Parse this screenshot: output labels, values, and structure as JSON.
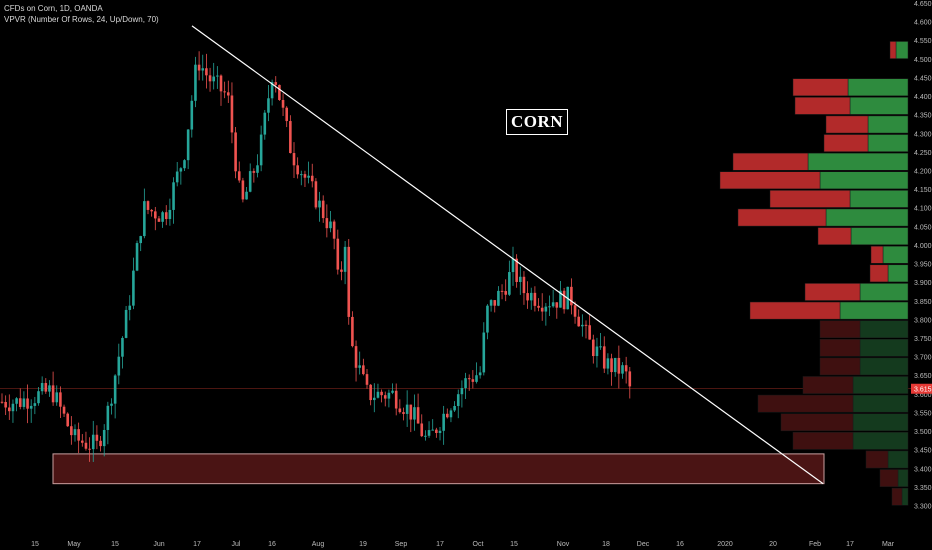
{
  "header": {
    "symbol_line": "CFDs on Corn, 1D, OANDA",
    "indicator_line": "VPVR (Number Of Rows, 24, Up/Down, 70)"
  },
  "annotation": {
    "label": "CORN"
  },
  "colors": {
    "up": "#26a69a",
    "down": "#ef5350",
    "vp_up": "#2e8b3e",
    "vp_down": "#b22a2a",
    "zone_fill": "#4a1414",
    "trendline": "#ffffff",
    "price_tag": "#e53935"
  },
  "chart_data": {
    "type": "candlestick",
    "y_axis": {
      "min": 3.3,
      "max": 4.65,
      "step": 0.05,
      "labels": [
        "4.650",
        "4.600",
        "4.550",
        "4.500",
        "4.450",
        "4.400",
        "4.350",
        "4.300",
        "4.250",
        "4.200",
        "4.150",
        "4.100",
        "4.050",
        "4.000",
        "3.950",
        "3.900",
        "3.850",
        "3.800",
        "3.750",
        "3.700",
        "3.650",
        "3.600",
        "3.550",
        "3.500",
        "3.450",
        "3.400",
        "3.350",
        "3.300"
      ]
    },
    "x_axis": {
      "labels": [
        "15",
        "May",
        "15",
        "Jun",
        "17",
        "Jul",
        "16",
        "Aug",
        "19",
        "Sep",
        "17",
        "Oct",
        "15",
        "Nov",
        "18",
        "Dec",
        "16",
        "2020",
        "20",
        "Feb",
        "17",
        "Mar"
      ]
    },
    "last_price": "3.615",
    "price_ohlc_anchors": [
      {
        "date": "Apr 08",
        "close": 3.58
      },
      {
        "date": "Apr 22",
        "close": 3.61
      },
      {
        "date": "May 01",
        "close": 3.48
      },
      {
        "date": "May 10",
        "close": 3.46
      },
      {
        "date": "May 14",
        "close": 3.55
      },
      {
        "date": "May 22",
        "close": 3.83
      },
      {
        "date": "May 28",
        "close": 4.1
      },
      {
        "date": "Jun 05",
        "close": 4.08
      },
      {
        "date": "Jun 12",
        "close": 4.24
      },
      {
        "date": "Jun 17",
        "close": 4.5
      },
      {
        "date": "Jun 21",
        "close": 4.45
      },
      {
        "date": "Jun 28",
        "close": 4.4
      },
      {
        "date": "Jul 03",
        "close": 4.1
      },
      {
        "date": "Jul 10",
        "close": 4.25
      },
      {
        "date": "Jul 15",
        "close": 4.48
      },
      {
        "date": "Jul 22",
        "close": 4.25
      },
      {
        "date": "Jul 31",
        "close": 4.13
      },
      {
        "date": "Aug 07",
        "close": 4.03
      },
      {
        "date": "Aug 09",
        "close": 3.88
      },
      {
        "date": "Aug 12",
        "close": 4.05
      },
      {
        "date": "Aug 13",
        "close": 3.75
      },
      {
        "date": "Aug 20",
        "close": 3.6
      },
      {
        "date": "Aug 30",
        "close": 3.6
      },
      {
        "date": "Sep 06",
        "close": 3.55
      },
      {
        "date": "Sep 12",
        "close": 3.47
      },
      {
        "date": "Sep 20",
        "close": 3.57
      },
      {
        "date": "Sep 27",
        "close": 3.64
      },
      {
        "date": "Oct 02",
        "close": 3.66
      },
      {
        "date": "Oct 04",
        "close": 3.82
      },
      {
        "date": "Oct 10",
        "close": 3.88
      },
      {
        "date": "Oct 14",
        "close": 3.94
      },
      {
        "date": "Oct 17",
        "close": 3.88
      },
      {
        "date": "Oct 25",
        "close": 3.85
      },
      {
        "date": "Nov 04",
        "close": 3.86
      },
      {
        "date": "Nov 11",
        "close": 3.74
      },
      {
        "date": "Nov 18",
        "close": 3.68
      },
      {
        "date": "Nov 25",
        "close": 3.66
      },
      {
        "date": "Nov 27",
        "close": 3.615
      }
    ],
    "trendline": {
      "from": {
        "date": "Jun 15",
        "price": 4.59
      },
      "to": {
        "date": "Feb 05",
        "price": 3.36
      }
    },
    "support_zone": {
      "y_low": 3.36,
      "y_high": 3.44,
      "from": "Apr 15",
      "to": "Feb 05"
    },
    "resistance_line": {
      "price": 3.615
    },
    "volume_profile": [
      {
        "price": 4.525,
        "up": 12,
        "down": 6
      },
      {
        "price": 4.425,
        "up": 60,
        "down": 55
      },
      {
        "price": 4.375,
        "up": 58,
        "down": 55
      },
      {
        "price": 4.325,
        "up": 40,
        "down": 42
      },
      {
        "price": 4.275,
        "up": 40,
        "down": 44
      },
      {
        "price": 4.225,
        "up": 100,
        "down": 75
      },
      {
        "price": 4.175,
        "up": 88,
        "down": 100
      },
      {
        "price": 4.125,
        "up": 58,
        "down": 80
      },
      {
        "price": 4.075,
        "up": 82,
        "down": 88
      },
      {
        "price": 4.025,
        "up": 57,
        "down": 33
      },
      {
        "price": 3.975,
        "up": 25,
        "down": 12
      },
      {
        "price": 3.925,
        "up": 20,
        "down": 18
      },
      {
        "price": 3.875,
        "up": 48,
        "down": 55
      },
      {
        "price": 3.825,
        "up": 68,
        "down": 90
      },
      {
        "price": 3.775,
        "up": 48,
        "down": 40
      },
      {
        "price": 3.725,
        "up": 48,
        "down": 40
      },
      {
        "price": 3.675,
        "up": 48,
        "down": 40
      },
      {
        "price": 3.625,
        "up": 55,
        "down": 50
      },
      {
        "price": 3.575,
        "up": 55,
        "down": 95
      },
      {
        "price": 3.525,
        "up": 55,
        "down": 72
      },
      {
        "price": 3.475,
        "up": 55,
        "down": 60
      },
      {
        "price": 3.425,
        "up": 20,
        "down": 22
      },
      {
        "price": 3.375,
        "up": 10,
        "down": 18
      },
      {
        "price": 3.325,
        "up": 6,
        "down": 10
      }
    ]
  }
}
